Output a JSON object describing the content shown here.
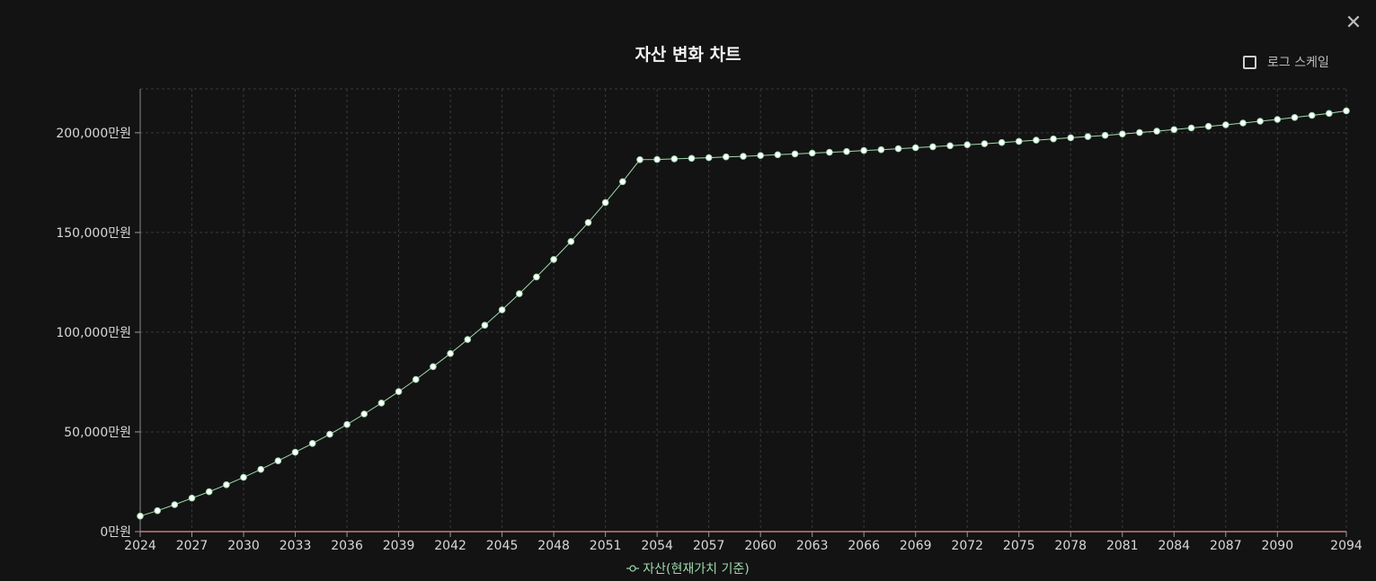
{
  "header": {
    "title": "자산 변화 차트",
    "close_icon": "close-icon",
    "log_scale_label": "로그 스케일",
    "log_scale_checked": false
  },
  "colors": {
    "background": "#131313",
    "series_line": "#9fd9ae",
    "point_fill": "#ffffff",
    "zero_line": "#c97b7b",
    "grid": "#3a3a3a"
  },
  "chart_data": {
    "type": "line",
    "title": "자산 변화 차트",
    "x_ticks": [
      "2024",
      "2027",
      "2030",
      "2033",
      "2036",
      "2039",
      "2042",
      "2045",
      "2048",
      "2051",
      "2054",
      "2057",
      "2060",
      "2063",
      "2066",
      "2069",
      "2072",
      "2075",
      "2078",
      "2081",
      "2084",
      "2087",
      "2090",
      "2094"
    ],
    "y_ticks": [
      "0만원",
      "50,000만원",
      "100,000만원",
      "150,000만원",
      "200,000만원"
    ],
    "xlim": [
      2024,
      2094
    ],
    "ylim": [
      0,
      222000
    ],
    "grid": true,
    "legend_position": "bottom",
    "series": [
      {
        "name": "자산(현재가치 기준)",
        "x": [
          2024,
          2025,
          2026,
          2027,
          2028,
          2029,
          2030,
          2031,
          2032,
          2033,
          2034,
          2035,
          2036,
          2037,
          2038,
          2039,
          2040,
          2041,
          2042,
          2043,
          2044,
          2045,
          2046,
          2047,
          2048,
          2049,
          2050,
          2051,
          2052,
          2053,
          2054,
          2055,
          2056,
          2057,
          2058,
          2059,
          2060,
          2061,
          2062,
          2063,
          2064,
          2065,
          2066,
          2067,
          2068,
          2069,
          2070,
          2071,
          2072,
          2073,
          2074,
          2075,
          2076,
          2077,
          2078,
          2079,
          2080,
          2081,
          2082,
          2083,
          2084,
          2085,
          2086,
          2087,
          2088,
          2089,
          2090,
          2091,
          2092,
          2093,
          2094
        ],
        "values": [
          7800,
          10500,
          13500,
          16800,
          20000,
          23500,
          27200,
          31200,
          35500,
          39800,
          44200,
          48800,
          53700,
          59000,
          64500,
          70200,
          76300,
          82700,
          89300,
          96300,
          103500,
          111200,
          119300,
          127700,
          136500,
          145500,
          155000,
          165000,
          175500,
          186500,
          186600,
          186900,
          187200,
          187500,
          187900,
          188200,
          188600,
          189000,
          189400,
          189800,
          190200,
          190600,
          191100,
          191500,
          192000,
          192500,
          193000,
          193500,
          194000,
          194500,
          195100,
          195700,
          196300,
          196900,
          197500,
          198100,
          198700,
          199400,
          200100,
          200800,
          201600,
          202400,
          203200,
          204000,
          204900,
          205800,
          206700,
          207700,
          208700,
          209700,
          211000
        ]
      }
    ]
  }
}
